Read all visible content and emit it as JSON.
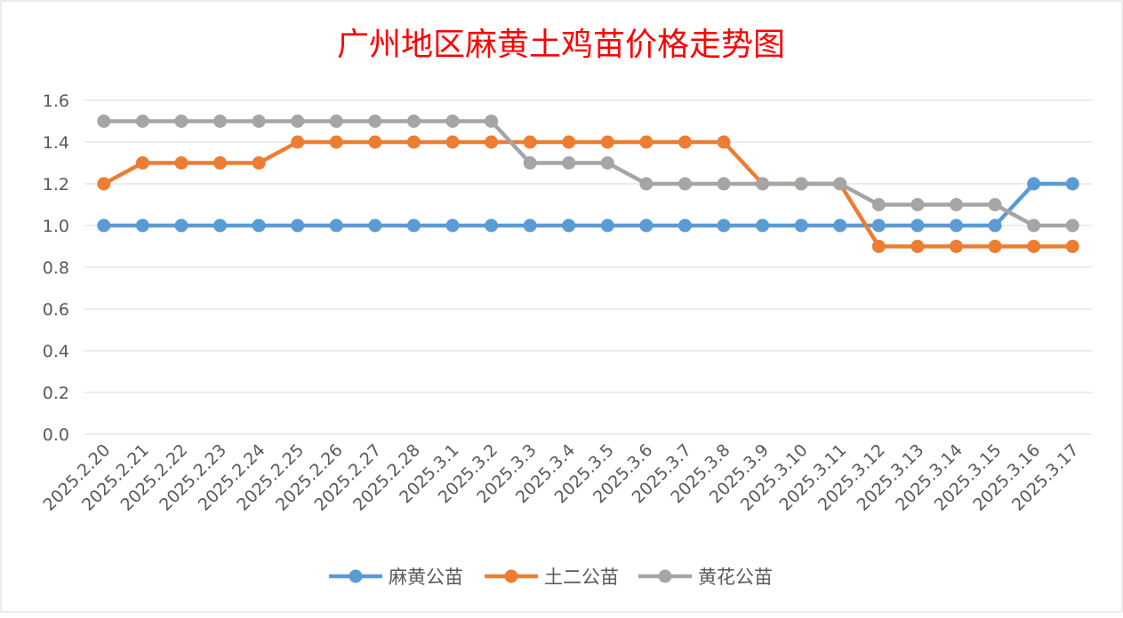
{
  "chart_data": {
    "type": "line",
    "title": "广州地区麻黄土鸡苗价格走势图",
    "xlabel": "",
    "ylabel": "",
    "ylim": [
      0,
      1.6
    ],
    "yticks": [
      "0.0",
      "0.2",
      "0.4",
      "0.6",
      "0.8",
      "1.0",
      "1.2",
      "1.4",
      "1.6"
    ],
    "grid": true,
    "legend_position": "bottom",
    "categories": [
      "2025.2.20",
      "2025.2.21",
      "2025.2.22",
      "2025.2.23",
      "2025.2.24",
      "2025.2.25",
      "2025.2.26",
      "2025.2.27",
      "2025.2.28",
      "2025.3.1",
      "2025.3.2",
      "2025.3.3",
      "2025.3.4",
      "2025.3.5",
      "2025.3.6",
      "2025.3.7",
      "2025.3.8",
      "2025.3.9",
      "2025.3.10",
      "2025.3.11",
      "2025.3.12",
      "2025.3.13",
      "2025.3.14",
      "2025.3.15",
      "2025.3.16",
      "2025.3.17"
    ],
    "series": [
      {
        "name": "麻黄公苗",
        "color": "#5b9bd5",
        "values": [
          1.0,
          1.0,
          1.0,
          1.0,
          1.0,
          1.0,
          1.0,
          1.0,
          1.0,
          1.0,
          1.0,
          1.0,
          1.0,
          1.0,
          1.0,
          1.0,
          1.0,
          1.0,
          1.0,
          1.0,
          1.0,
          1.0,
          1.0,
          1.0,
          1.2,
          1.2
        ]
      },
      {
        "name": "土二公苗",
        "color": "#ed7d31",
        "values": [
          1.2,
          1.3,
          1.3,
          1.3,
          1.3,
          1.4,
          1.4,
          1.4,
          1.4,
          1.4,
          1.4,
          1.4,
          1.4,
          1.4,
          1.4,
          1.4,
          1.4,
          1.2,
          1.2,
          1.2,
          0.9,
          0.9,
          0.9,
          0.9,
          0.9,
          0.9
        ]
      },
      {
        "name": "黄花公苗",
        "color": "#a5a5a5",
        "values": [
          1.5,
          1.5,
          1.5,
          1.5,
          1.5,
          1.5,
          1.5,
          1.5,
          1.5,
          1.5,
          1.5,
          1.3,
          1.3,
          1.3,
          1.2,
          1.2,
          1.2,
          1.2,
          1.2,
          1.2,
          1.1,
          1.1,
          1.1,
          1.1,
          1.0,
          1.0
        ]
      }
    ]
  }
}
